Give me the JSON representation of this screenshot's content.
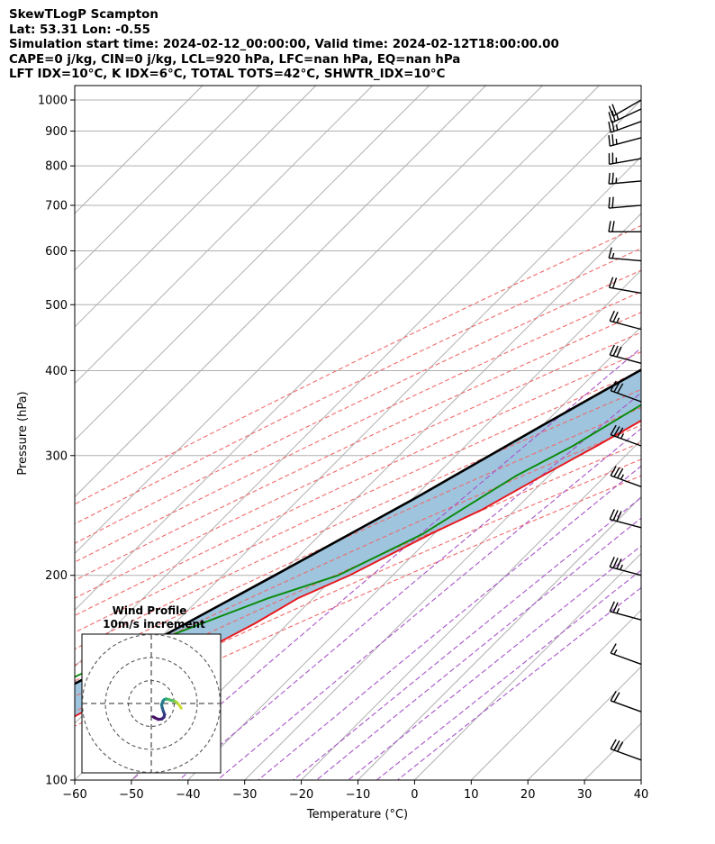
{
  "header": {
    "line1": "SkewTLogP Scampton",
    "line2": "Lat: 53.31   Lon: -0.55",
    "line3": "Simulation start time: 2024-02-12_00:00:00, Valid time: 2024-02-12T18:00:00.00",
    "line4": "CAPE=0 j/kg, CIN=0 j/kg, LCL=920 hPa, LFC=nan hPa, EQ=nan hPa",
    "line5": "LFT IDX=10°C, K IDX=6°C, TOTAL TOTS=42°C, SHWTR_IDX=10°C"
  },
  "chart_data": {
    "type": "line",
    "title": "SkewTLogP Scampton",
    "xlabel": "Temperature (°C)",
    "ylabel": "Pressure (hPa)",
    "xlim": [
      -60,
      40
    ],
    "ylim": [
      1050,
      100
    ],
    "log_y": true,
    "xticks": [
      -60,
      -50,
      -40,
      -30,
      -20,
      -10,
      0,
      10,
      20,
      30,
      40
    ],
    "xtick_labels": [
      "−60",
      "−50",
      "−40",
      "−30",
      "−20",
      "−10",
      "0",
      "10",
      "20",
      "30",
      "40"
    ],
    "yticks": [
      1000,
      900,
      800,
      700,
      600,
      500,
      400,
      300,
      200,
      100
    ],
    "ytick_labels": [
      "1000",
      "900",
      "800",
      "700",
      "600",
      "500",
      "400",
      "300",
      "200",
      "100"
    ],
    "grid": true,
    "series": [
      {
        "name": "",
        "role": "temperature",
        "color": "#e8161b",
        "points": [
          [
            7.5,
            1000
          ],
          [
            3.8,
            930
          ],
          [
            1.4,
            860
          ],
          [
            0.6,
            800
          ],
          [
            0.1,
            750
          ],
          [
            -0.5,
            700
          ],
          [
            -1.6,
            650
          ],
          [
            -3.7,
            600
          ],
          [
            -5.9,
            550
          ],
          [
            -8.2,
            500
          ],
          [
            -12.6,
            450
          ],
          [
            -17.2,
            400
          ],
          [
            -22,
            350
          ],
          [
            -26.8,
            310
          ],
          [
            -31.2,
            280
          ],
          [
            -35.8,
            250
          ],
          [
            -40.6,
            230
          ],
          [
            -47.6,
            200
          ],
          [
            -52.7,
            185
          ],
          [
            -55.8,
            170
          ],
          [
            -61.7,
            150
          ],
          [
            -67.5,
            135
          ],
          [
            -72.7,
            120
          ],
          [
            -76.4,
            110
          ],
          [
            -79,
            100
          ]
        ]
      },
      {
        "name": "",
        "role": "dewpoint",
        "color": "#098a09",
        "points": [
          [
            0.5,
            1000
          ],
          [
            0.2,
            950
          ],
          [
            -2.3,
            880
          ],
          [
            -4.2,
            840
          ],
          [
            -7.9,
            780
          ],
          [
            -11.1,
            730
          ],
          [
            -11.2,
            680
          ],
          [
            -10.9,
            640
          ],
          [
            -8.6,
            590
          ],
          [
            -10,
            550
          ],
          [
            -12.8,
            500
          ],
          [
            -17.6,
            450
          ],
          [
            -22,
            400
          ],
          [
            -26.8,
            350
          ],
          [
            -31,
            310
          ],
          [
            -35.8,
            280
          ],
          [
            -39.4,
            250
          ],
          [
            -42,
            230
          ],
          [
            -49.6,
            200
          ],
          [
            -58,
            185
          ],
          [
            -67.7,
            165
          ],
          [
            -76.9,
            145
          ],
          [
            -85.4,
            125
          ],
          [
            -92.8,
            110
          ],
          [
            -98.3,
            100
          ]
        ]
      },
      {
        "name": "",
        "role": "parcel",
        "color": "#000000",
        "points": [
          [
            7.5,
            1000
          ],
          [
            3.4,
            950
          ],
          [
            0.6,
            920
          ],
          [
            -2.7,
            850
          ],
          [
            -6,
            780
          ],
          [
            -9.8,
            700
          ],
          [
            -14.2,
            620
          ],
          [
            -19.8,
            550
          ],
          [
            -25.5,
            480
          ],
          [
            -32.5,
            400
          ],
          [
            -40.3,
            330
          ],
          [
            -49.6,
            260
          ],
          [
            -60.8,
            200
          ],
          [
            -76.5,
            140
          ],
          [
            -93.5,
            100
          ]
        ]
      }
    ],
    "dry_adiabats_theta_C": [
      -30,
      -20,
      -10,
      0,
      10,
      20,
      30,
      40,
      50,
      60,
      70,
      80,
      90,
      100
    ],
    "moist_adiabats_C": [
      -30,
      -20,
      -10,
      0,
      10,
      20,
      30
    ],
    "mixing_ratio_lines_gkg": [
      0.4,
      1,
      2,
      4,
      7,
      10,
      16,
      24,
      32
    ],
    "wind_barbs": [
      {
        "p": 1000,
        "speed_kt": 20,
        "dir_deg": 240
      },
      {
        "p": 970,
        "speed_kt": 25,
        "dir_deg": 245
      },
      {
        "p": 930,
        "speed_kt": 25,
        "dir_deg": 250
      },
      {
        "p": 880,
        "speed_kt": 25,
        "dir_deg": 255
      },
      {
        "p": 820,
        "speed_kt": 25,
        "dir_deg": 260
      },
      {
        "p": 760,
        "speed_kt": 25,
        "dir_deg": 265
      },
      {
        "p": 700,
        "speed_kt": 20,
        "dir_deg": 265
      },
      {
        "p": 640,
        "speed_kt": 20,
        "dir_deg": 270
      },
      {
        "p": 580,
        "speed_kt": 15,
        "dir_deg": 275
      },
      {
        "p": 520,
        "speed_kt": 20,
        "dir_deg": 280
      },
      {
        "p": 460,
        "speed_kt": 25,
        "dir_deg": 285
      },
      {
        "p": 410,
        "speed_kt": 30,
        "dir_deg": 285
      },
      {
        "p": 360,
        "speed_kt": 30,
        "dir_deg": 290
      },
      {
        "p": 310,
        "speed_kt": 35,
        "dir_deg": 290
      },
      {
        "p": 270,
        "speed_kt": 35,
        "dir_deg": 290
      },
      {
        "p": 235,
        "speed_kt": 30,
        "dir_deg": 285
      },
      {
        "p": 200,
        "speed_kt": 35,
        "dir_deg": 285
      },
      {
        "p": 172,
        "speed_kt": 25,
        "dir_deg": 285
      },
      {
        "p": 148,
        "speed_kt": 15,
        "dir_deg": 290
      },
      {
        "p": 126,
        "speed_kt": 20,
        "dir_deg": 290
      },
      {
        "p": 107,
        "speed_kt": 30,
        "dir_deg": 290
      }
    ],
    "inset": {
      "title": "Wind Profile",
      "subtitle": "10m/s increment",
      "ring_spacing_ms": 10,
      "hodograph_uv": [
        [
          13,
          2
        ],
        [
          12,
          0.5
        ],
        [
          11,
          -0.5
        ],
        [
          10,
          -1
        ],
        [
          9,
          -1.3
        ],
        [
          8,
          -1.6
        ],
        [
          6.5,
          -2
        ],
        [
          5.5,
          -1.6
        ],
        [
          5,
          -0.8
        ],
        [
          4.5,
          0.5
        ],
        [
          4.8,
          2
        ],
        [
          5.3,
          3.5
        ],
        [
          5.8,
          4.8
        ],
        [
          5.5,
          6
        ],
        [
          4.5,
          6.8
        ],
        [
          3,
          6.9
        ],
        [
          1.5,
          6.2
        ],
        [
          0.8,
          5.8
        ]
      ]
    }
  }
}
